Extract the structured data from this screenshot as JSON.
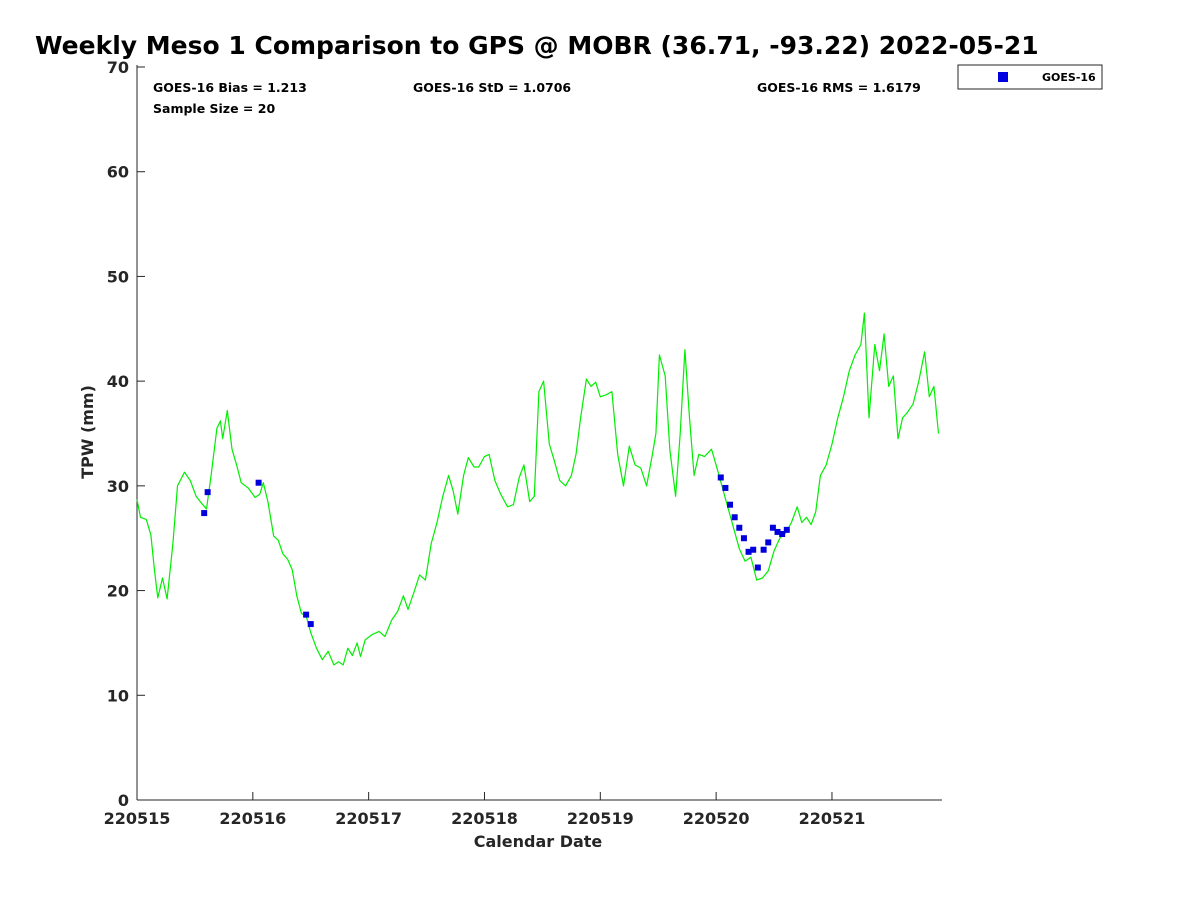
{
  "chart_data": {
    "type": "line+scatter",
    "title": "Weekly Meso 1 Comparison to GPS @ MOBR (36.71, -93.22) 2022-05-21",
    "xlabel": "Calendar Date",
    "ylabel": "TPW (mm)",
    "xlim": [
      220515.0,
      220521.95
    ],
    "ylim": [
      0,
      70
    ],
    "x_ticks": [
      220515,
      220516,
      220517,
      220518,
      220519,
      220520,
      220521
    ],
    "x_tick_labels": [
      "220515",
      "220516",
      "220517",
      "220518",
      "220519",
      "220520",
      "220521"
    ],
    "y_ticks": [
      0,
      10,
      20,
      30,
      40,
      50,
      60,
      70
    ],
    "y_tick_labels": [
      "0",
      "10",
      "20",
      "30",
      "40",
      "50",
      "60",
      "70"
    ],
    "stats": {
      "bias": "GOES-16 Bias = 1.213",
      "std": "GOES-16 StD = 1.0706",
      "rms": "GOES-16 RMS = 1.6179",
      "sample_size": "Sample Size = 20"
    },
    "legend": [
      {
        "label": "GOES-16",
        "marker": "square",
        "color": "#0000e0"
      }
    ],
    "colors": {
      "gps_line": "#00ee00",
      "goes_marker": "#0000dd"
    },
    "series": [
      {
        "name": "GPS",
        "style": "line",
        "points": [
          [
            220515.0,
            28.7
          ],
          [
            220515.03,
            27.0
          ],
          [
            220515.08,
            26.8
          ],
          [
            220515.12,
            25.3
          ],
          [
            220515.15,
            22.0
          ],
          [
            220515.18,
            19.3
          ],
          [
            220515.22,
            21.2
          ],
          [
            220515.26,
            19.2
          ],
          [
            220515.31,
            24.5
          ],
          [
            220515.35,
            30.0
          ],
          [
            220515.41,
            31.3
          ],
          [
            220515.46,
            30.5
          ],
          [
            220515.51,
            29.0
          ],
          [
            220515.56,
            28.3
          ],
          [
            220515.6,
            27.8
          ],
          [
            220515.64,
            31.0
          ],
          [
            220515.69,
            35.5
          ],
          [
            220515.72,
            36.2
          ],
          [
            220515.74,
            34.5
          ],
          [
            220515.78,
            37.2
          ],
          [
            220515.82,
            33.5
          ],
          [
            220515.86,
            32.0
          ],
          [
            220515.9,
            30.3
          ],
          [
            220515.96,
            29.8
          ],
          [
            220516.02,
            28.9
          ],
          [
            220516.06,
            29.2
          ],
          [
            220516.09,
            30.3
          ],
          [
            220516.13,
            28.5
          ],
          [
            220516.18,
            25.2
          ],
          [
            220516.22,
            24.8
          ],
          [
            220516.26,
            23.5
          ],
          [
            220516.3,
            23.0
          ],
          [
            220516.34,
            22.0
          ],
          [
            220516.38,
            19.5
          ],
          [
            220516.42,
            17.8
          ],
          [
            220516.46,
            17.6
          ],
          [
            220516.5,
            16.0
          ],
          [
            220516.55,
            14.5
          ],
          [
            220516.6,
            13.4
          ],
          [
            220516.65,
            14.2
          ],
          [
            220516.7,
            12.9
          ],
          [
            220516.74,
            13.2
          ],
          [
            220516.78,
            12.9
          ],
          [
            220516.82,
            14.5
          ],
          [
            220516.86,
            13.8
          ],
          [
            220516.9,
            15.0
          ],
          [
            220516.93,
            13.7
          ],
          [
            220516.97,
            15.3
          ],
          [
            220517.03,
            15.8
          ],
          [
            220517.09,
            16.1
          ],
          [
            220517.14,
            15.6
          ],
          [
            220517.2,
            17.2
          ],
          [
            220517.25,
            18.0
          ],
          [
            220517.3,
            19.5
          ],
          [
            220517.34,
            18.2
          ],
          [
            220517.39,
            19.8
          ],
          [
            220517.44,
            21.5
          ],
          [
            220517.49,
            21.0
          ],
          [
            220517.54,
            24.5
          ],
          [
            220517.59,
            26.5
          ],
          [
            220517.64,
            29.0
          ],
          [
            220517.69,
            31.0
          ],
          [
            220517.73,
            29.5
          ],
          [
            220517.77,
            27.3
          ],
          [
            220517.82,
            31.0
          ],
          [
            220517.86,
            32.7
          ],
          [
            220517.91,
            31.8
          ],
          [
            220517.95,
            31.8
          ],
          [
            220518.0,
            32.8
          ],
          [
            220518.04,
            33.0
          ],
          [
            220518.09,
            30.5
          ],
          [
            220518.14,
            29.2
          ],
          [
            220518.2,
            28.0
          ],
          [
            220518.25,
            28.2
          ],
          [
            220518.3,
            30.8
          ],
          [
            220518.34,
            32.0
          ],
          [
            220518.39,
            28.5
          ],
          [
            220518.43,
            29.0
          ],
          [
            220518.47,
            39.0
          ],
          [
            220518.51,
            40.0
          ],
          [
            220518.56,
            34.0
          ],
          [
            220518.6,
            32.5
          ],
          [
            220518.65,
            30.5
          ],
          [
            220518.7,
            30.0
          ],
          [
            220518.75,
            31.0
          ],
          [
            220518.79,
            33.0
          ],
          [
            220518.83,
            36.5
          ],
          [
            220518.88,
            40.2
          ],
          [
            220518.92,
            39.5
          ],
          [
            220518.96,
            39.9
          ],
          [
            220519.0,
            38.5
          ],
          [
            220519.05,
            38.7
          ],
          [
            220519.1,
            39.0
          ],
          [
            220519.15,
            33.0
          ],
          [
            220519.2,
            30.0
          ],
          [
            220519.25,
            33.8
          ],
          [
            220519.3,
            32.0
          ],
          [
            220519.35,
            31.7
          ],
          [
            220519.4,
            30.0
          ],
          [
            220519.45,
            33.0
          ],
          [
            220519.48,
            35.0
          ],
          [
            220519.51,
            42.5
          ],
          [
            220519.56,
            40.5
          ],
          [
            220519.6,
            33.5
          ],
          [
            220519.65,
            29.0
          ],
          [
            220519.69,
            35.0
          ],
          [
            220519.73,
            43.0
          ],
          [
            220519.77,
            36.5
          ],
          [
            220519.81,
            31.0
          ],
          [
            220519.85,
            33.0
          ],
          [
            220519.9,
            32.8
          ],
          [
            220519.96,
            33.5
          ],
          [
            220520.0,
            32.0
          ],
          [
            220520.05,
            30.0
          ],
          [
            220520.1,
            28.0
          ],
          [
            220520.15,
            26.0
          ],
          [
            220520.2,
            24.0
          ],
          [
            220520.25,
            22.8
          ],
          [
            220520.3,
            23.2
          ],
          [
            220520.35,
            21.0
          ],
          [
            220520.4,
            21.2
          ],
          [
            220520.45,
            21.9
          ],
          [
            220520.5,
            23.8
          ],
          [
            220520.55,
            25.0
          ],
          [
            220520.6,
            25.5
          ],
          [
            220520.65,
            26.5
          ],
          [
            220520.7,
            28.0
          ],
          [
            220520.74,
            26.5
          ],
          [
            220520.78,
            27.0
          ],
          [
            220520.82,
            26.3
          ],
          [
            220520.86,
            27.5
          ],
          [
            220520.9,
            31.0
          ],
          [
            220520.95,
            32.0
          ],
          [
            220521.0,
            34.0
          ],
          [
            220521.05,
            36.5
          ],
          [
            220521.1,
            38.5
          ],
          [
            220521.15,
            41.0
          ],
          [
            220521.2,
            42.5
          ],
          [
            220521.25,
            43.5
          ],
          [
            220521.28,
            46.5
          ],
          [
            220521.32,
            36.5
          ],
          [
            220521.37,
            43.5
          ],
          [
            220521.41,
            41.0
          ],
          [
            220521.45,
            44.5
          ],
          [
            220521.49,
            39.5
          ],
          [
            220521.53,
            40.5
          ],
          [
            220521.57,
            34.5
          ],
          [
            220521.61,
            36.5
          ],
          [
            220521.65,
            37.0
          ],
          [
            220521.7,
            37.8
          ],
          [
            220521.75,
            40.0
          ],
          [
            220521.8,
            42.8
          ],
          [
            220521.84,
            38.5
          ],
          [
            220521.88,
            39.5
          ],
          [
            220521.92,
            35.0
          ]
        ]
      },
      {
        "name": "GOES-16",
        "style": "square-markers",
        "points": [
          [
            220515.58,
            27.4
          ],
          [
            220515.61,
            29.4
          ],
          [
            220516.05,
            30.3
          ],
          [
            220516.46,
            17.7
          ],
          [
            220516.5,
            16.8
          ],
          [
            220520.04,
            30.8
          ],
          [
            220520.08,
            29.8
          ],
          [
            220520.12,
            28.2
          ],
          [
            220520.16,
            27.0
          ],
          [
            220520.2,
            26.0
          ],
          [
            220520.24,
            25.0
          ],
          [
            220520.28,
            23.7
          ],
          [
            220520.32,
            23.9
          ],
          [
            220520.36,
            22.2
          ],
          [
            220520.41,
            23.9
          ],
          [
            220520.45,
            24.6
          ],
          [
            220520.49,
            26.0
          ],
          [
            220520.53,
            25.6
          ],
          [
            220520.57,
            25.4
          ],
          [
            220520.61,
            25.8
          ]
        ]
      }
    ]
  }
}
